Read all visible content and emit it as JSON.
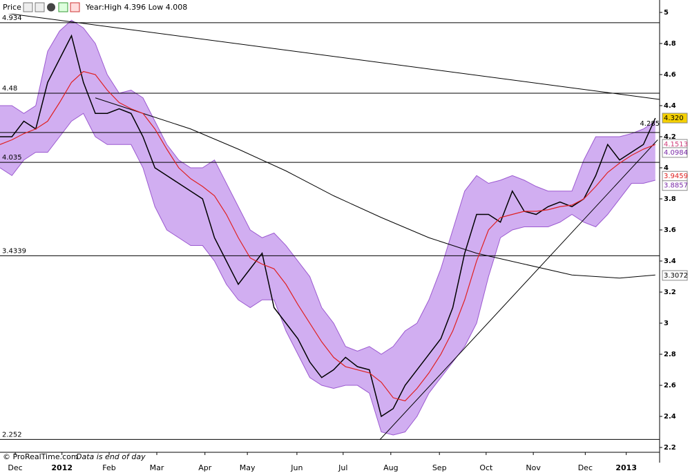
{
  "toolbar": {
    "label": "Price",
    "range_text": "Year:High 4.396 Low 4.008"
  },
  "footer": {
    "source": "© ProRealTime.com",
    "note": "Data is end of day"
  },
  "chart_data": {
    "type": "line",
    "x": [
      0,
      0.25,
      0.5,
      0.75,
      1,
      1.25,
      1.5,
      1.75,
      2,
      2.25,
      2.5,
      2.75,
      3,
      3.25,
      3.5,
      3.75,
      4,
      4.25,
      4.5,
      4.75,
      5,
      5.25,
      5.5,
      5.75,
      6,
      6.25,
      6.5,
      6.75,
      7,
      7.25,
      7.5,
      7.75,
      8,
      8.25,
      8.5,
      8.75,
      9,
      9.25,
      9.5,
      9.75,
      10,
      10.25,
      10.5,
      10.75,
      11,
      11.25,
      11.5,
      11.75,
      12,
      12.25,
      12.5,
      12.75,
      13,
      13.25,
      13.5,
      13.75
    ],
    "series": [
      {
        "color": "#000000",
        "values": [
          4.2,
          4.2,
          4.3,
          4.25,
          4.55,
          4.7,
          4.85,
          4.55,
          4.35,
          4.35,
          4.38,
          4.35,
          4.2,
          4.0,
          3.95,
          3.9,
          3.85,
          3.8,
          3.55,
          3.4,
          3.25,
          3.35,
          3.45,
          3.1,
          3.0,
          2.9,
          2.75,
          2.65,
          2.7,
          2.78,
          2.72,
          2.7,
          2.4,
          2.45,
          2.6,
          2.7,
          2.8,
          2.9,
          3.1,
          3.45,
          3.7,
          3.7,
          3.65,
          3.85,
          3.72,
          3.7,
          3.75,
          3.78,
          3.75,
          3.8,
          3.95,
          4.15,
          4.05,
          4.1,
          4.15,
          4.32
        ]
      },
      {
        "color": "#e02020",
        "values": [
          4.15,
          4.18,
          4.22,
          4.25,
          4.3,
          4.42,
          4.55,
          4.62,
          4.6,
          4.5,
          4.42,
          4.38,
          4.35,
          4.25,
          4.12,
          4.0,
          3.93,
          3.88,
          3.82,
          3.7,
          3.55,
          3.42,
          3.38,
          3.35,
          3.25,
          3.12,
          3.0,
          2.88,
          2.78,
          2.72,
          2.7,
          2.68,
          2.62,
          2.52,
          2.5,
          2.58,
          2.68,
          2.8,
          2.95,
          3.15,
          3.4,
          3.6,
          3.68,
          3.7,
          3.72,
          3.72,
          3.73,
          3.75,
          3.76,
          3.8,
          3.88,
          3.97,
          4.03,
          4.08,
          4.12,
          4.15
        ]
      }
    ],
    "bollinger": {
      "color": "#c9a0ee",
      "edge": "#9b59d0",
      "upper": [
        4.4,
        4.4,
        4.35,
        4.4,
        4.75,
        4.88,
        4.95,
        4.9,
        4.8,
        4.6,
        4.48,
        4.5,
        4.45,
        4.3,
        4.15,
        4.05,
        4.0,
        4.0,
        4.05,
        3.9,
        3.75,
        3.6,
        3.55,
        3.58,
        3.5,
        3.4,
        3.3,
        3.1,
        3.0,
        2.85,
        2.82,
        2.85,
        2.8,
        2.85,
        2.95,
        3.0,
        3.15,
        3.35,
        3.6,
        3.85,
        3.95,
        3.9,
        3.92,
        3.95,
        3.92,
        3.88,
        3.85,
        3.85,
        3.85,
        4.05,
        4.2,
        4.2,
        4.2,
        4.22,
        4.25,
        4.3
      ],
      "lower": [
        4.0,
        3.95,
        4.05,
        4.1,
        4.1,
        4.2,
        4.3,
        4.35,
        4.2,
        4.15,
        4.15,
        4.15,
        4.0,
        3.75,
        3.6,
        3.55,
        3.5,
        3.5,
        3.4,
        3.25,
        3.15,
        3.1,
        3.15,
        3.15,
        2.95,
        2.8,
        2.65,
        2.6,
        2.58,
        2.6,
        2.6,
        2.55,
        2.3,
        2.28,
        2.3,
        2.4,
        2.55,
        2.65,
        2.75,
        2.85,
        3.0,
        3.3,
        3.55,
        3.6,
        3.62,
        3.62,
        3.62,
        3.65,
        3.7,
        3.65,
        3.62,
        3.7,
        3.8,
        3.9,
        3.9,
        3.92
      ]
    },
    "long_average": {
      "color": "#000000",
      "x": [
        2,
        3,
        4,
        5,
        6,
        7,
        8,
        9,
        10,
        11,
        12,
        13,
        13.75
      ],
      "values": [
        4.45,
        4.35,
        4.25,
        4.12,
        3.98,
        3.82,
        3.68,
        3.55,
        3.45,
        3.38,
        3.31,
        3.29,
        3.31
      ]
    },
    "trendlines": [
      {
        "x": [
          0,
          13.84
        ],
        "values": [
          5.0,
          4.44
        ]
      },
      {
        "x": [
          7.97,
          13.8
        ],
        "values": [
          2.25,
          4.18
        ]
      }
    ],
    "levels": [
      {
        "value": 4.934,
        "label": "4.934"
      },
      {
        "value": 4.48,
        "label": "4.48"
      },
      {
        "value": 4.035,
        "label": "4.035"
      },
      {
        "value": 3.4339,
        "label": "3.4339"
      },
      {
        "value": 2.252,
        "label": "2.252"
      }
    ],
    "unlabeled_levels": [
      4.227
    ],
    "annotation": {
      "value": 4.285,
      "label": "4.285",
      "x": 13.6
    },
    "price_tags": [
      {
        "value": 4.32,
        "label": "4.320",
        "color": "#000000",
        "background": "#f5d000"
      },
      {
        "value": 4.1513,
        "label": "4.1513",
        "color": "#d03c7a",
        "background": "#ffffff"
      },
      {
        "value": 4.0984,
        "label": "4.0984",
        "color": "#7a2aa8",
        "background": "#ffffff"
      },
      {
        "value": 3.9459,
        "label": "3.9459",
        "color": "#e02020",
        "background": "#ffffff"
      },
      {
        "value": 3.8857,
        "label": "3.8857",
        "color": "#7a2aa8",
        "background": "#ffffff"
      },
      {
        "value": 3.3072,
        "label": "3.3072",
        "color": "#000000",
        "background": "#ffffff"
      }
    ],
    "xlim": [
      0,
      13.84
    ],
    "xticks": [
      {
        "value": 0.32,
        "label": "Dec"
      },
      {
        "value": 1.3,
        "label": "2012"
      },
      {
        "value": 2.29,
        "label": "Feb"
      },
      {
        "value": 3.29,
        "label": "Mar"
      },
      {
        "value": 4.3,
        "label": "Apr"
      },
      {
        "value": 5.19,
        "label": "May"
      },
      {
        "value": 6.23,
        "label": "Jun"
      },
      {
        "value": 7.2,
        "label": "Jul"
      },
      {
        "value": 8.2,
        "label": "Aug"
      },
      {
        "value": 9.22,
        "label": "Sep"
      },
      {
        "value": 10.2,
        "label": "Oct"
      },
      {
        "value": 11.19,
        "label": "Nov"
      },
      {
        "value": 12.28,
        "label": "Dec"
      },
      {
        "value": 13.14,
        "label": "2013"
      }
    ],
    "ylim": [
      2.169,
      5.08
    ],
    "yticks": [
      5,
      4.8,
      4.6,
      4.4,
      4.2,
      4,
      3.8,
      3.6,
      3.4,
      3.2,
      3,
      2.8,
      2.6,
      2.4,
      2.2
    ]
  }
}
